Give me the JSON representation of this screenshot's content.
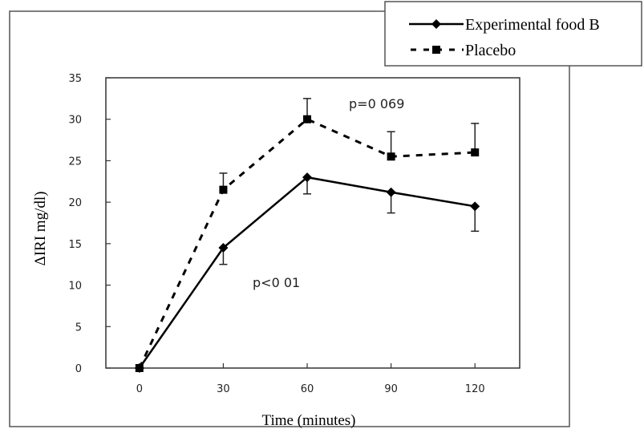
{
  "chart_data": {
    "type": "line",
    "xlabel": "Time (minutes)",
    "ylabel": "ΔIRI mg/dl)",
    "x": [
      0,
      30,
      60,
      90,
      120
    ],
    "xticks": [
      "0",
      "30",
      "60",
      "90",
      "120"
    ],
    "yticks": [
      "0",
      "5",
      "10",
      "15",
      "20",
      "25",
      "30",
      "35"
    ],
    "xlim": [
      -12,
      136
    ],
    "ylim": [
      0,
      35
    ],
    "legend_position": "top-right",
    "series": [
      {
        "name": "Experimental food B",
        "style": "solid",
        "marker": "diamond",
        "color": "#000000",
        "values": [
          0,
          14.5,
          23,
          21.2,
          19.5
        ],
        "err_up": [
          0,
          0,
          0,
          0,
          0
        ],
        "err_down": [
          0,
          2,
          2,
          2.5,
          3
        ]
      },
      {
        "name": "Placebo",
        "style": "dashed",
        "marker": "square",
        "color": "#000000",
        "values": [
          0,
          21.5,
          30,
          25.5,
          26
        ],
        "err_up": [
          0,
          2,
          2.5,
          3,
          3.5
        ],
        "err_down": [
          0,
          0,
          0,
          0,
          0
        ]
      }
    ],
    "annotations": [
      "p=0 069",
      "p<0 01"
    ]
  }
}
